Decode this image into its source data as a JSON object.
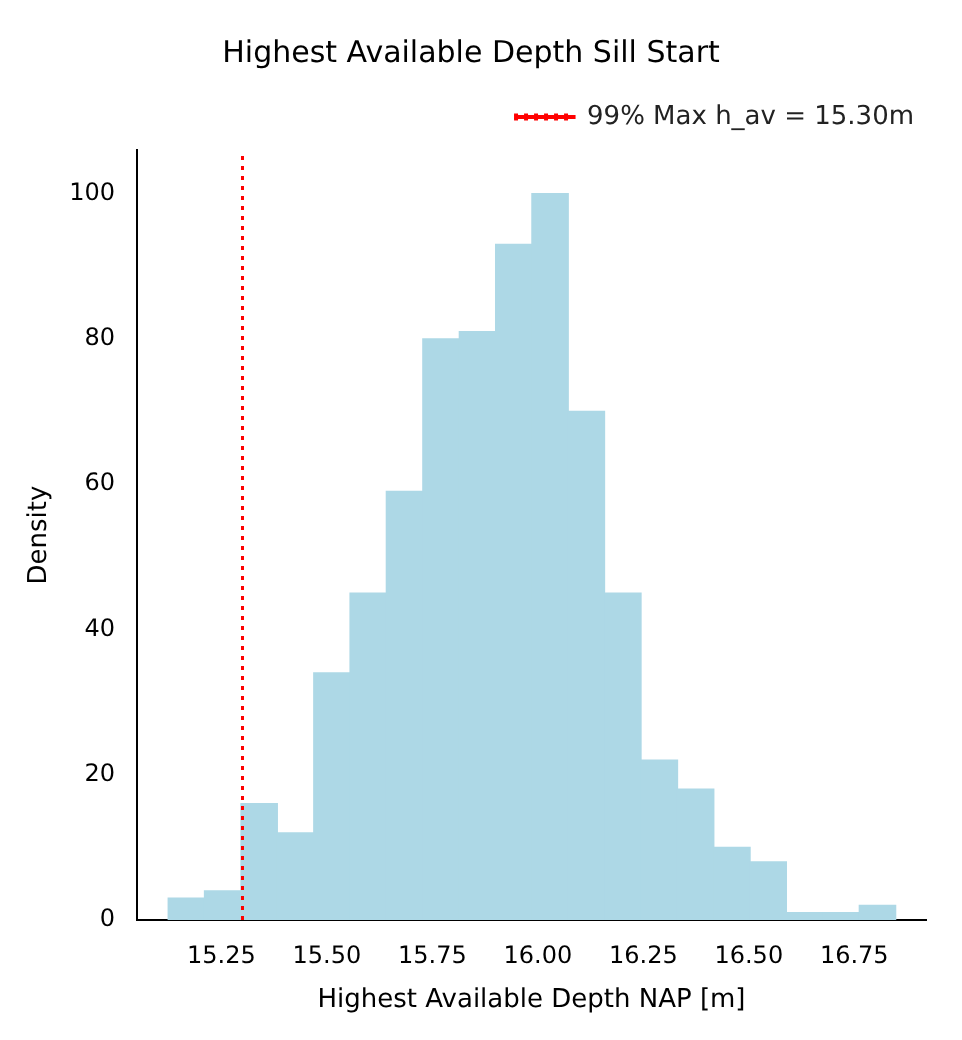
{
  "chart_data": {
    "type": "histogram",
    "title": "Highest Available Depth Sill Start",
    "xlabel": "Highest Available Depth NAP [m]",
    "ylabel": "Density",
    "bins": [
      15.124,
      15.21,
      15.296,
      15.383,
      15.469,
      15.555,
      15.641,
      15.727,
      15.814,
      15.9,
      15.986,
      16.072,
      16.158,
      16.245,
      16.331,
      16.417,
      16.503,
      16.589,
      16.675,
      16.762,
      16.848
    ],
    "values": [
      3,
      4,
      16,
      12,
      34,
      45,
      59,
      80,
      81,
      93,
      100,
      70,
      45,
      22,
      18,
      10,
      8,
      1,
      1,
      2
    ],
    "color": "#add8e6",
    "xlim": [
      15.05,
      16.92
    ],
    "ylim": [
      0,
      106
    ],
    "xticks": [
      {
        "value": 15.25,
        "label": "15.25"
      },
      {
        "value": 15.5,
        "label": "15.50"
      },
      {
        "value": 15.75,
        "label": "15.75"
      },
      {
        "value": 16.0,
        "label": "16.00"
      },
      {
        "value": 16.25,
        "label": "16.25"
      },
      {
        "value": 16.5,
        "label": "16.50"
      },
      {
        "value": 16.75,
        "label": "16.75"
      }
    ],
    "yticks": [
      0,
      20,
      40,
      60,
      80,
      100
    ],
    "ref_lines": [
      {
        "axis": "x",
        "value": 15.3,
        "label": "99% Max h_av = 15.30m",
        "color": "#ff0000",
        "line_style": "dotted"
      }
    ],
    "legend": "top right",
    "grid": false
  }
}
